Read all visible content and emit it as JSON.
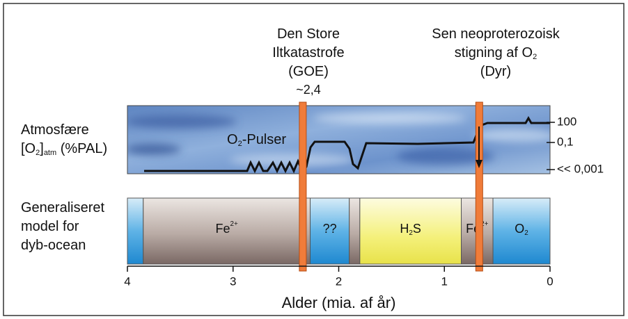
{
  "top_labels": [
    {
      "lines": [
        {
          "text": "Den Store"
        },
        {
          "text": "Iltkatastrofe"
        },
        {
          "text": "(GOE)"
        }
      ],
      "age_label": "~2,4"
    },
    {
      "lines": [
        {
          "text": "Sen neoproterozoisk"
        },
        {
          "text": "stigning af O",
          "sub": "2"
        },
        {
          "text": "(Dyr)"
        }
      ]
    }
  ],
  "atmosphere": {
    "label_lines": [
      {
        "text": "Atmosfære"
      },
      {
        "text": "[O",
        "sub": "2",
        "text2": "]",
        "sub2": "atm",
        "text3": " (%PAL)"
      }
    ],
    "curve_label": {
      "text": "O",
      "sub": "2",
      "text2": "-Pulser"
    },
    "levels": [
      "100",
      "0,1",
      "<< 0,001"
    ]
  },
  "ocean": {
    "label_lines": [
      {
        "text": "Generaliseret"
      },
      {
        "text": "model for"
      },
      {
        "text": "dyb-ocean"
      }
    ],
    "segments": [
      {
        "start": 4,
        "end": 3.85,
        "kind": "oxic"
      },
      {
        "start": 3.85,
        "end": 2.27,
        "kind": "ferruginous",
        "label": {
          "text": "Fe",
          "sup": "2+"
        }
      },
      {
        "start": 2.27,
        "end": 1.9,
        "kind": "oxic",
        "label": {
          "text": "??"
        }
      },
      {
        "start": 1.9,
        "end": 1.8,
        "kind": "ferruginous"
      },
      {
        "start": 1.8,
        "end": 0.84,
        "kind": "euxinic",
        "label": {
          "text": "H",
          "sub": "2",
          "text2": "S"
        }
      },
      {
        "start": 0.84,
        "end": 0.54,
        "kind": "ferruginous",
        "label": {
          "text": "Fe",
          "sup": "2+"
        }
      },
      {
        "start": 0.54,
        "end": 0,
        "kind": "oxic",
        "label": {
          "text": "O",
          "sub": "2"
        }
      }
    ]
  },
  "events": [
    2.34,
    0.67
  ],
  "axis": {
    "lim": [
      4,
      0
    ],
    "ticks": [
      4,
      3,
      2,
      1,
      0
    ],
    "label": "Alder (mia. af år)"
  }
}
